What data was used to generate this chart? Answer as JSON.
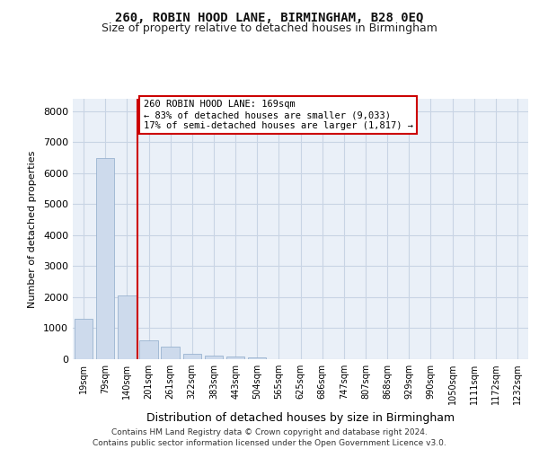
{
  "title1": "260, ROBIN HOOD LANE, BIRMINGHAM, B28 0EQ",
  "title2": "Size of property relative to detached houses in Birmingham",
  "xlabel": "Distribution of detached houses by size in Birmingham",
  "ylabel": "Number of detached properties",
  "bin_labels": [
    "19sqm",
    "79sqm",
    "140sqm",
    "201sqm",
    "261sqm",
    "322sqm",
    "383sqm",
    "443sqm",
    "504sqm",
    "565sqm",
    "625sqm",
    "686sqm",
    "747sqm",
    "807sqm",
    "868sqm",
    "929sqm",
    "990sqm",
    "1050sqm",
    "1111sqm",
    "1172sqm",
    "1232sqm"
  ],
  "bar_heights": [
    1300,
    6500,
    2050,
    600,
    420,
    160,
    120,
    80,
    50,
    0,
    0,
    0,
    0,
    0,
    0,
    0,
    0,
    0,
    0,
    0,
    0
  ],
  "bar_color": "#cddaec",
  "bar_edge_color": "#9ab3d0",
  "vline_x_data": 2.5,
  "vline_color": "#cc0000",
  "annotation_text": "260 ROBIN HOOD LANE: 169sqm\n← 83% of detached houses are smaller (9,033)\n17% of semi-detached houses are larger (1,817) →",
  "annotation_box_color": "#ffffff",
  "annotation_box_edge": "#cc0000",
  "footnote_line1": "Contains HM Land Registry data © Crown copyright and database right 2024.",
  "footnote_line2": "Contains public sector information licensed under the Open Government Licence v3.0.",
  "ylim": [
    0,
    8400
  ],
  "yticks": [
    0,
    1000,
    2000,
    3000,
    4000,
    5000,
    6000,
    7000,
    8000
  ],
  "grid_color": "#c8d4e4",
  "bg_color": "#eaf0f8"
}
